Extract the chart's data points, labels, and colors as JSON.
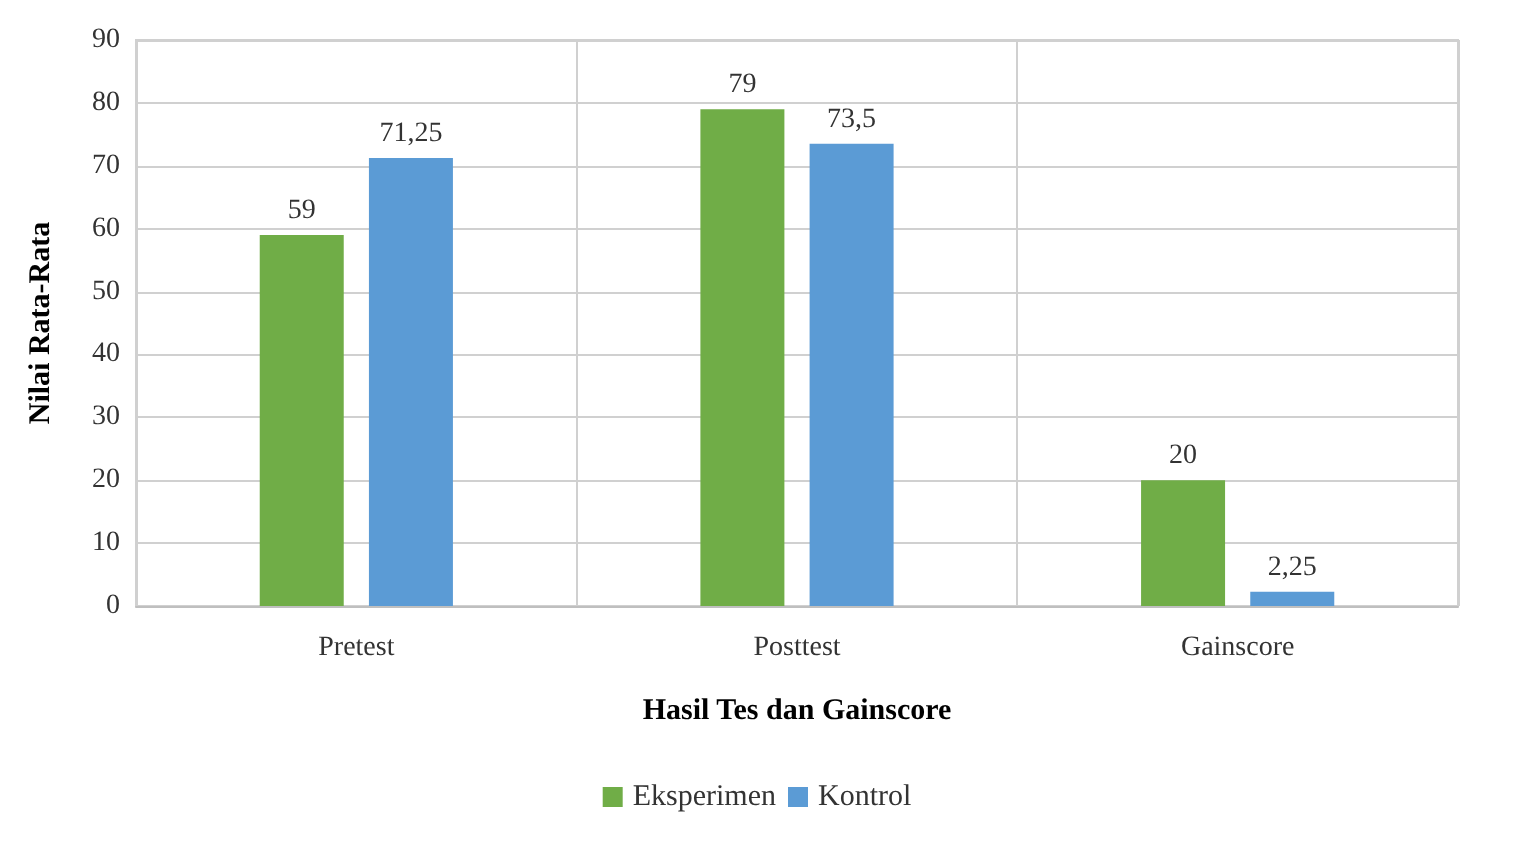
{
  "chart_data": {
    "type": "bar",
    "xlabel": "Hasil Tes dan Gainscore",
    "ylabel": "Nilai Rata-Rata",
    "categories": [
      "Pretest",
      "Posttest",
      "Gainscore"
    ],
    "series": [
      {
        "name": "Eksperimen",
        "color": "#70ad47",
        "values": [
          59,
          79,
          20
        ],
        "value_labels": [
          "59",
          "79",
          "20"
        ]
      },
      {
        "name": "Kontrol",
        "color": "#5b9bd5",
        "values": [
          71.25,
          73.5,
          2.25
        ],
        "value_labels": [
          "71,25",
          "73,5",
          "2,25"
        ]
      }
    ],
    "ylim": [
      0,
      90
    ],
    "yticks": [
      0,
      10,
      20,
      30,
      40,
      50,
      60,
      70,
      80,
      90
    ],
    "grid": true,
    "legend": "bottom"
  }
}
